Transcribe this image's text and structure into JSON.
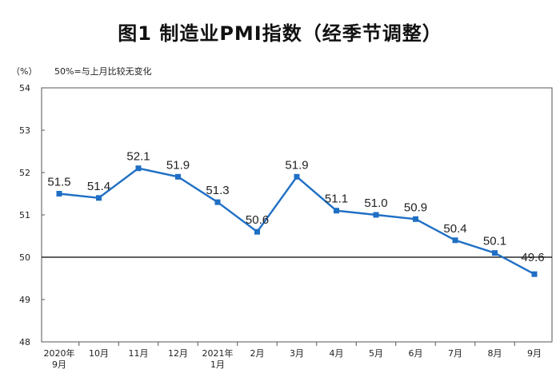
{
  "chart_data": {
    "type": "line",
    "title": "图1 制造业PMI指数（经季节调整）",
    "ylabel": "（%）",
    "annotation": "50%=与上月比较无变化",
    "ylim": [
      48,
      54
    ],
    "yticks": [
      "48",
      "49",
      "50",
      "51",
      "52",
      "53",
      "54"
    ],
    "reference_line": 50,
    "grid": false,
    "categories": [
      [
        "2020年",
        "9月"
      ],
      [
        "10月"
      ],
      [
        "11月"
      ],
      [
        "12月"
      ],
      [
        "2021年",
        "1月"
      ],
      [
        "2月"
      ],
      [
        "3月"
      ],
      [
        "4月"
      ],
      [
        "5月"
      ],
      [
        "6月"
      ],
      [
        "7月"
      ],
      [
        "8月"
      ],
      [
        "9月"
      ]
    ],
    "series": [
      {
        "values": [
          51.5,
          51.4,
          52.1,
          51.9,
          51.3,
          50.6,
          51.9,
          51.1,
          51.0,
          50.9,
          50.4,
          50.1,
          49.6
        ],
        "labels": [
          "51.5",
          "51.4",
          "52.1",
          "51.9",
          "51.3",
          "50.6",
          "51.9",
          "51.1",
          "51.0",
          "50.9",
          "50.4",
          "50.1",
          "49.6"
        ],
        "color": "#1f6fc4"
      }
    ]
  }
}
